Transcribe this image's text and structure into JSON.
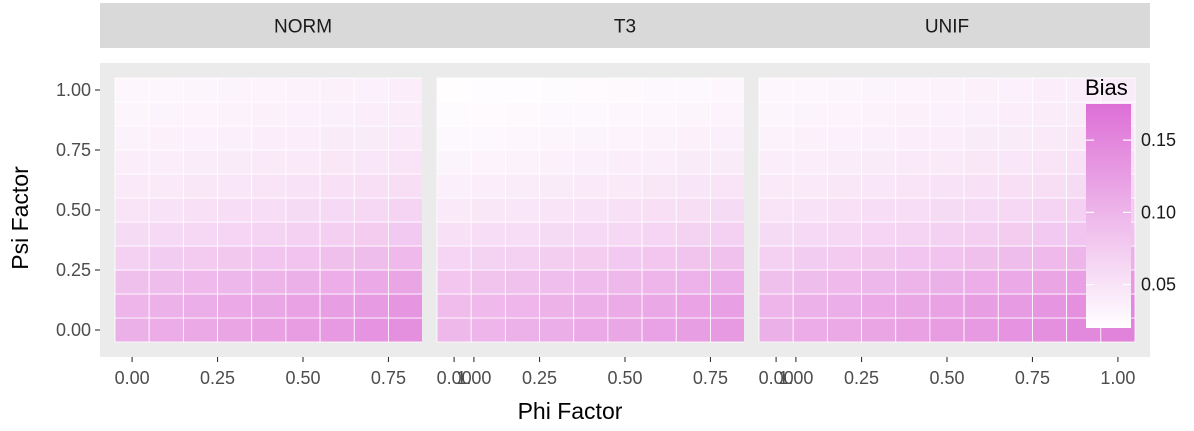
{
  "chart_data": {
    "type": "heatmap",
    "x_label": "Phi Factor",
    "y_label": "Psi Factor",
    "x_ticks": [
      "0.00",
      "0.25",
      "0.50",
      "0.75",
      "1.00"
    ],
    "y_ticks": [
      "0.00",
      "0.25",
      "0.50",
      "0.75",
      "1.00"
    ],
    "x_range": [
      -0.05,
      1.05
    ],
    "y_range": [
      -0.05,
      1.05
    ],
    "x": [
      0.0,
      0.1,
      0.2,
      0.3,
      0.4,
      0.5,
      0.6,
      0.7,
      0.8,
      0.9,
      1.0
    ],
    "y": [
      0.0,
      0.1,
      0.2,
      0.3,
      0.4,
      0.5,
      0.6,
      0.7,
      0.8,
      0.9,
      1.0
    ],
    "grid": true,
    "panels": [
      {
        "label": "NORM",
        "bias": [
          [
            0.105,
            0.109,
            0.113,
            0.117,
            0.121,
            0.125,
            0.13,
            0.135,
            0.14,
            0.147,
            0.155
          ],
          [
            0.1,
            0.104,
            0.107,
            0.111,
            0.115,
            0.119,
            0.124,
            0.128,
            0.133,
            0.14,
            0.147
          ],
          [
            0.088,
            0.091,
            0.094,
            0.097,
            0.101,
            0.105,
            0.108,
            0.112,
            0.117,
            0.123,
            0.129
          ],
          [
            0.071,
            0.074,
            0.076,
            0.079,
            0.082,
            0.085,
            0.088,
            0.091,
            0.095,
            0.1,
            0.105
          ],
          [
            0.059,
            0.061,
            0.063,
            0.065,
            0.067,
            0.07,
            0.072,
            0.075,
            0.078,
            0.082,
            0.086
          ],
          [
            0.05,
            0.051,
            0.053,
            0.055,
            0.057,
            0.059,
            0.061,
            0.063,
            0.066,
            0.069,
            0.073
          ],
          [
            0.043,
            0.044,
            0.046,
            0.047,
            0.049,
            0.051,
            0.052,
            0.054,
            0.056,
            0.059,
            0.062
          ],
          [
            0.038,
            0.039,
            0.04,
            0.041,
            0.043,
            0.044,
            0.046,
            0.047,
            0.049,
            0.052,
            0.054
          ],
          [
            0.034,
            0.035,
            0.036,
            0.037,
            0.038,
            0.039,
            0.041,
            0.042,
            0.044,
            0.046,
            0.048
          ],
          [
            0.031,
            0.032,
            0.033,
            0.034,
            0.035,
            0.036,
            0.037,
            0.039,
            0.04,
            0.042,
            0.044
          ],
          [
            0.029,
            0.03,
            0.031,
            0.032,
            0.033,
            0.034,
            0.035,
            0.036,
            0.038,
            0.039,
            0.041
          ]
        ]
      },
      {
        "label": "T3",
        "bias": [
          [
            0.096,
            0.1,
            0.104,
            0.107,
            0.111,
            0.115,
            0.12,
            0.124,
            0.129,
            0.135,
            0.142
          ],
          [
            0.092,
            0.095,
            0.099,
            0.102,
            0.106,
            0.11,
            0.114,
            0.118,
            0.123,
            0.129,
            0.135
          ],
          [
            0.081,
            0.084,
            0.087,
            0.09,
            0.093,
            0.096,
            0.1,
            0.103,
            0.107,
            0.113,
            0.118
          ],
          [
            0.065,
            0.068,
            0.07,
            0.073,
            0.075,
            0.078,
            0.081,
            0.084,
            0.087,
            0.091,
            0.096
          ],
          [
            0.053,
            0.055,
            0.057,
            0.059,
            0.061,
            0.063,
            0.065,
            0.068,
            0.07,
            0.074,
            0.078
          ],
          [
            0.044,
            0.046,
            0.047,
            0.049,
            0.051,
            0.053,
            0.054,
            0.056,
            0.059,
            0.062,
            0.065
          ],
          [
            0.037,
            0.039,
            0.04,
            0.041,
            0.043,
            0.044,
            0.046,
            0.048,
            0.05,
            0.052,
            0.055
          ],
          [
            0.032,
            0.033,
            0.034,
            0.035,
            0.037,
            0.038,
            0.039,
            0.041,
            0.042,
            0.044,
            0.047
          ],
          [
            0.027,
            0.028,
            0.029,
            0.031,
            0.032,
            0.033,
            0.034,
            0.035,
            0.037,
            0.039,
            0.041
          ],
          [
            0.024,
            0.025,
            0.026,
            0.027,
            0.028,
            0.029,
            0.03,
            0.031,
            0.033,
            0.034,
            0.036
          ],
          [
            0.022,
            0.023,
            0.023,
            0.024,
            0.025,
            0.026,
            0.027,
            0.028,
            0.029,
            0.031,
            0.032
          ]
        ]
      },
      {
        "label": "UNIF",
        "bias": [
          [
            0.105,
            0.109,
            0.113,
            0.117,
            0.121,
            0.125,
            0.13,
            0.135,
            0.14,
            0.147,
            0.155
          ],
          [
            0.1,
            0.104,
            0.107,
            0.111,
            0.115,
            0.119,
            0.124,
            0.128,
            0.133,
            0.14,
            0.147
          ],
          [
            0.088,
            0.091,
            0.094,
            0.097,
            0.101,
            0.105,
            0.108,
            0.112,
            0.117,
            0.123,
            0.129
          ],
          [
            0.071,
            0.074,
            0.076,
            0.079,
            0.082,
            0.085,
            0.088,
            0.091,
            0.095,
            0.1,
            0.105
          ],
          [
            0.059,
            0.061,
            0.063,
            0.065,
            0.067,
            0.07,
            0.072,
            0.075,
            0.078,
            0.082,
            0.086
          ],
          [
            0.05,
            0.051,
            0.053,
            0.055,
            0.057,
            0.059,
            0.061,
            0.063,
            0.066,
            0.069,
            0.073
          ],
          [
            0.043,
            0.044,
            0.046,
            0.047,
            0.049,
            0.051,
            0.052,
            0.054,
            0.056,
            0.059,
            0.062
          ],
          [
            0.038,
            0.039,
            0.04,
            0.041,
            0.043,
            0.044,
            0.046,
            0.047,
            0.049,
            0.052,
            0.054
          ],
          [
            0.034,
            0.035,
            0.036,
            0.037,
            0.038,
            0.039,
            0.041,
            0.042,
            0.044,
            0.046,
            0.048
          ],
          [
            0.031,
            0.032,
            0.033,
            0.034,
            0.035,
            0.036,
            0.037,
            0.039,
            0.04,
            0.042,
            0.044
          ],
          [
            0.029,
            0.03,
            0.031,
            0.032,
            0.033,
            0.034,
            0.035,
            0.036,
            0.038,
            0.039,
            0.041
          ]
        ]
      }
    ],
    "legend": {
      "title": "Bias",
      "position": "right",
      "breaks": [
        0.05,
        0.1,
        0.15
      ],
      "break_labels": [
        "0.05",
        "0.10",
        "0.15"
      ],
      "range": [
        0.02,
        0.175
      ],
      "low_color": "#ffffff",
      "high_color": "#dd6fd6"
    },
    "colors": {
      "panel_bg": "#ebebeb",
      "strip_bg": "#d9d9d9",
      "tick_text": "#4d4d4d"
    }
  }
}
